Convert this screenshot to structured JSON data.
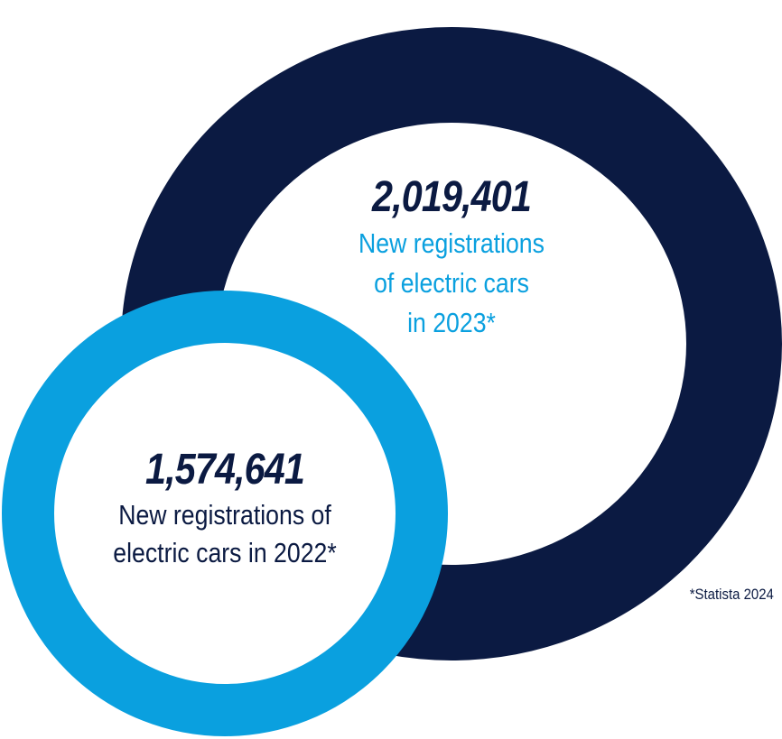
{
  "rings": [
    {
      "year_key": "2023",
      "value": "2,019,401",
      "caption_lines": [
        "New registrations",
        "of electric cars",
        "in 2023*"
      ],
      "ring_color": "#0b1a42",
      "value_color": "#0b1a42",
      "caption_color": "#0aa0df"
    },
    {
      "year_key": "2022",
      "value": "1,574,641",
      "caption_lines": [
        "New registrations of",
        "electric cars in 2022*"
      ],
      "ring_color": "#0aa0df",
      "value_color": "#0b1a42",
      "caption_color": "#0b1a42"
    }
  ],
  "source_note": "*Statista 2024"
}
